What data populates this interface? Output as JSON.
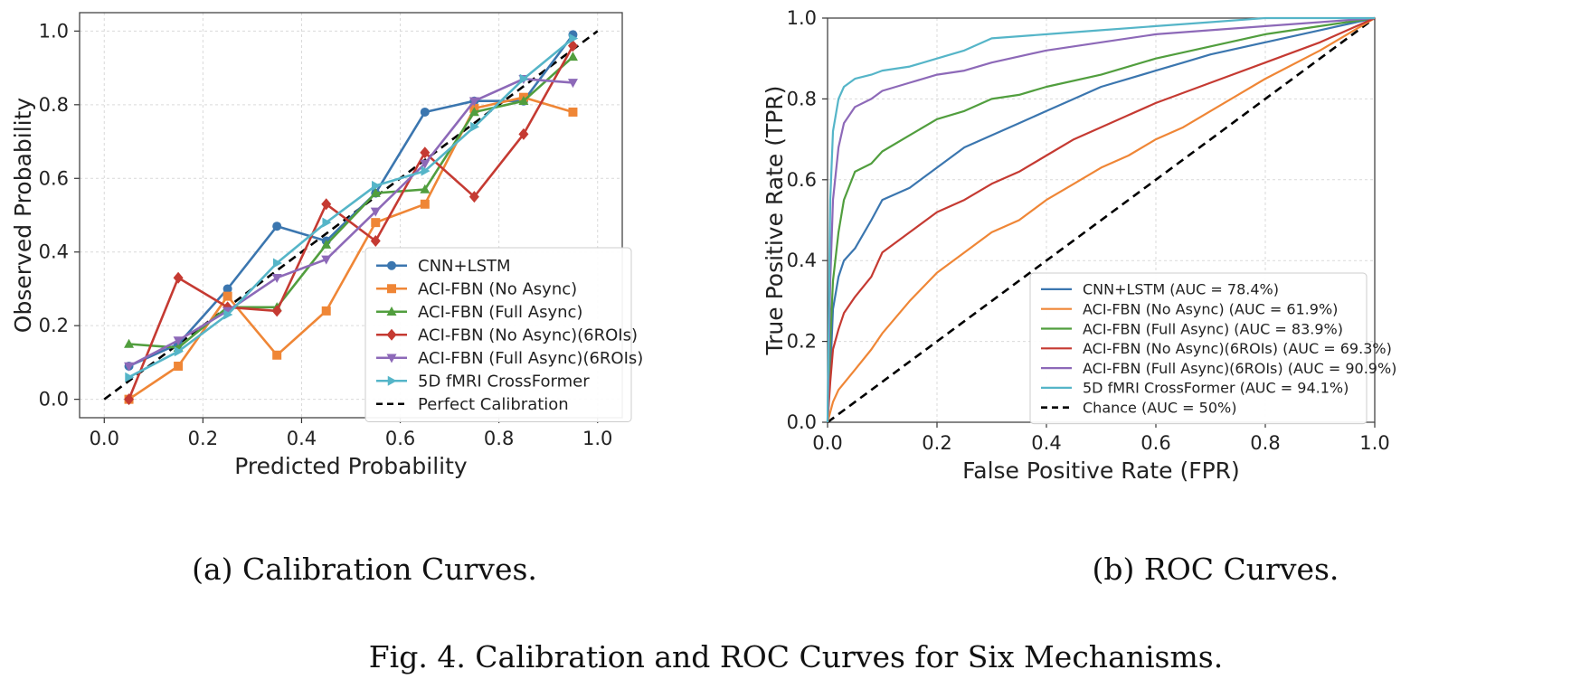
{
  "caption": "Fig. 4.  Calibration and ROC Curves for Six Mechanisms.",
  "colors": {
    "cnn": "#3b76af",
    "no_async": "#ef8636",
    "full_async": "#519e3e",
    "no_async_6": "#c53a32",
    "full_async_6": "#8d69b8",
    "crossformer": "#55b5c8",
    "reference": "#000000"
  },
  "chart_data": [
    {
      "type": "line",
      "subcaption": "(a) Calibration Curves.",
      "xlabel": "Predicted Probability",
      "ylabel": "Observed Probability",
      "xlim": [
        -0.05,
        1.05
      ],
      "ylim": [
        -0.05,
        1.05
      ],
      "xticks": [
        "0.0",
        "0.2",
        "0.4",
        "0.6",
        "0.8",
        "1.0"
      ],
      "yticks": [
        "0.0",
        "0.2",
        "0.4",
        "0.6",
        "0.8",
        "1.0"
      ],
      "grid": true,
      "legend_position": "lower-right",
      "x": [
        0.05,
        0.15,
        0.25,
        0.35,
        0.45,
        0.55,
        0.65,
        0.75,
        0.85,
        0.95
      ],
      "series": [
        {
          "name": "CNN+LSTM",
          "marker": "circle",
          "color_key": "cnn",
          "values": [
            0.09,
            0.15,
            0.3,
            0.47,
            0.43,
            0.56,
            0.78,
            0.81,
            0.81,
            0.99
          ]
        },
        {
          "name": "ACI-FBN (No Async)",
          "marker": "square",
          "color_key": "no_async",
          "values": [
            0.0,
            0.09,
            0.28,
            0.12,
            0.24,
            0.48,
            0.53,
            0.79,
            0.82,
            0.78
          ]
        },
        {
          "name": "ACI-FBN (Full Async)",
          "marker": "triangle-up",
          "color_key": "full_async",
          "values": [
            0.15,
            0.14,
            0.25,
            0.25,
            0.42,
            0.56,
            0.57,
            0.78,
            0.81,
            0.93
          ]
        },
        {
          "name": "ACI-FBN (No Async)(6ROIs)",
          "marker": "diamond",
          "color_key": "no_async_6",
          "values": [
            0.0,
            0.33,
            0.25,
            0.24,
            0.53,
            0.43,
            0.67,
            0.55,
            0.72,
            0.96
          ]
        },
        {
          "name": "ACI-FBN (Full Async)(6ROIs)",
          "marker": "triangle-down",
          "color_key": "full_async_6",
          "values": [
            0.09,
            0.16,
            0.24,
            0.33,
            0.38,
            0.51,
            0.64,
            0.81,
            0.87,
            0.86
          ]
        },
        {
          "name": "5D fMRI CrossFormer",
          "marker": "triangle-right",
          "color_key": "crossformer",
          "values": [
            0.06,
            0.13,
            0.23,
            0.37,
            0.48,
            0.58,
            0.62,
            0.74,
            0.87,
            0.98
          ]
        }
      ],
      "reference": {
        "name": "Perfect Calibration",
        "x": [
          0,
          1
        ],
        "y": [
          0,
          1
        ],
        "color_key": "reference"
      }
    },
    {
      "type": "line",
      "subcaption": "(b) ROC Curves.",
      "xlabel": "False Positive Rate (FPR)",
      "ylabel": "True Positive Rate (TPR)",
      "xlim": [
        0,
        1
      ],
      "ylim": [
        0,
        1
      ],
      "xticks": [
        "0.0",
        "0.2",
        "0.4",
        "0.6",
        "0.8",
        "1.0"
      ],
      "yticks": [
        "0.0",
        "0.2",
        "0.4",
        "0.6",
        "0.8",
        "1.0"
      ],
      "grid": true,
      "legend_position": "lower-right",
      "series": [
        {
          "name": "CNN+LSTM (AUC = 78.4%)",
          "color_key": "cnn",
          "x": [
            0,
            0.005,
            0.01,
            0.02,
            0.03,
            0.05,
            0.08,
            0.1,
            0.15,
            0.2,
            0.25,
            0.3,
            0.35,
            0.4,
            0.45,
            0.5,
            0.55,
            0.6,
            0.65,
            0.7,
            0.8,
            0.9,
            1.0
          ],
          "y": [
            0,
            0.12,
            0.28,
            0.36,
            0.4,
            0.43,
            0.5,
            0.55,
            0.58,
            0.63,
            0.68,
            0.71,
            0.74,
            0.77,
            0.8,
            0.83,
            0.85,
            0.87,
            0.89,
            0.91,
            0.94,
            0.97,
            1.0
          ]
        },
        {
          "name": "ACI-FBN (No Async) (AUC = 61.9%)",
          "color_key": "no_async",
          "x": [
            0,
            0.01,
            0.02,
            0.05,
            0.08,
            0.1,
            0.15,
            0.2,
            0.25,
            0.3,
            0.35,
            0.4,
            0.45,
            0.5,
            0.55,
            0.6,
            0.65,
            0.7,
            0.75,
            0.8,
            0.9,
            1.0
          ],
          "y": [
            0,
            0.05,
            0.08,
            0.13,
            0.18,
            0.22,
            0.3,
            0.37,
            0.42,
            0.47,
            0.5,
            0.55,
            0.59,
            0.63,
            0.66,
            0.7,
            0.73,
            0.77,
            0.81,
            0.85,
            0.92,
            1.0
          ]
        },
        {
          "name": "ACI-FBN (Full Async) (AUC = 83.9%)",
          "color_key": "full_async",
          "x": [
            0,
            0.005,
            0.01,
            0.02,
            0.03,
            0.05,
            0.08,
            0.1,
            0.15,
            0.2,
            0.25,
            0.3,
            0.35,
            0.4,
            0.5,
            0.6,
            0.7,
            0.8,
            0.9,
            1.0
          ],
          "y": [
            0,
            0.2,
            0.35,
            0.47,
            0.55,
            0.62,
            0.64,
            0.67,
            0.71,
            0.75,
            0.77,
            0.8,
            0.81,
            0.83,
            0.86,
            0.9,
            0.93,
            0.96,
            0.98,
            1.0
          ]
        },
        {
          "name": "ACI-FBN (No Async)(6ROIs) (AUC = 69.3%)",
          "color_key": "no_async_6",
          "x": [
            0,
            0.005,
            0.01,
            0.02,
            0.03,
            0.05,
            0.08,
            0.1,
            0.15,
            0.2,
            0.25,
            0.3,
            0.35,
            0.4,
            0.45,
            0.5,
            0.55,
            0.6,
            0.7,
            0.8,
            0.9,
            1.0
          ],
          "y": [
            0,
            0.1,
            0.18,
            0.23,
            0.27,
            0.31,
            0.36,
            0.42,
            0.47,
            0.52,
            0.55,
            0.59,
            0.62,
            0.66,
            0.7,
            0.73,
            0.76,
            0.79,
            0.84,
            0.89,
            0.94,
            1.0
          ]
        },
        {
          "name": "ACI-FBN (Full Async)(6ROIs) (AUC = 90.9%)",
          "color_key": "full_async_6",
          "x": [
            0,
            0.005,
            0.01,
            0.02,
            0.03,
            0.05,
            0.08,
            0.1,
            0.15,
            0.2,
            0.25,
            0.3,
            0.4,
            0.5,
            0.6,
            0.7,
            0.8,
            0.9,
            1.0
          ],
          "y": [
            0,
            0.35,
            0.55,
            0.68,
            0.74,
            0.78,
            0.8,
            0.82,
            0.84,
            0.86,
            0.87,
            0.89,
            0.92,
            0.94,
            0.96,
            0.97,
            0.98,
            0.99,
            1.0
          ]
        },
        {
          "name": "5D fMRI CrossFormer (AUC = 94.1%)",
          "color_key": "crossformer",
          "x": [
            0,
            0.005,
            0.01,
            0.02,
            0.03,
            0.05,
            0.08,
            0.1,
            0.15,
            0.2,
            0.25,
            0.3,
            0.4,
            0.5,
            0.6,
            0.7,
            0.8,
            0.9,
            1.0
          ],
          "y": [
            0,
            0.55,
            0.72,
            0.8,
            0.83,
            0.85,
            0.86,
            0.87,
            0.88,
            0.9,
            0.92,
            0.95,
            0.96,
            0.97,
            0.98,
            0.99,
            1.0,
            1.0,
            1.0
          ]
        }
      ],
      "reference": {
        "name": "Chance (AUC = 50%)",
        "x": [
          0,
          1
        ],
        "y": [
          0,
          1
        ],
        "color_key": "reference"
      }
    }
  ]
}
